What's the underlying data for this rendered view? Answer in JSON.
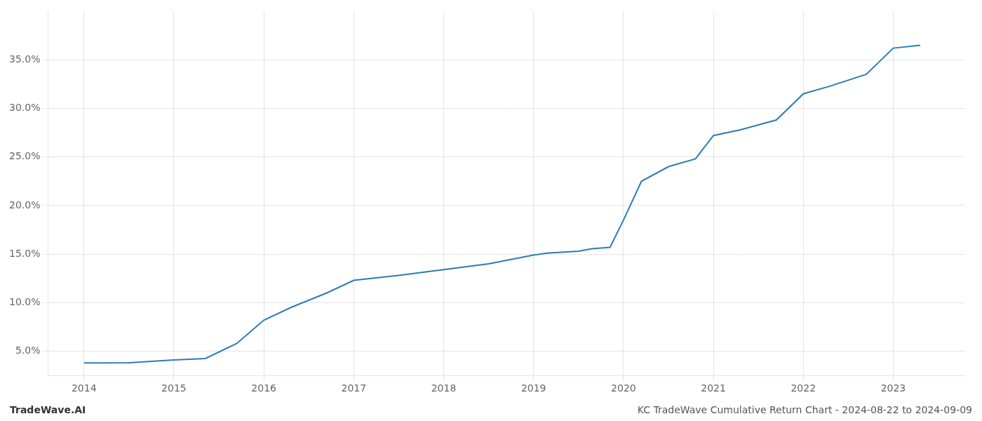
{
  "chart_data": {
    "type": "line",
    "x": [
      2014.0,
      2014.5,
      2015.0,
      2015.35,
      2015.7,
      2016.0,
      2016.3,
      2016.7,
      2017.0,
      2017.5,
      2018.0,
      2018.5,
      2019.0,
      2019.15,
      2019.5,
      2019.65,
      2019.85,
      2020.0,
      2020.2,
      2020.5,
      2020.8,
      2021.0,
      2021.3,
      2021.7,
      2022.0,
      2022.3,
      2022.7,
      2023.0,
      2023.3
    ],
    "values": [
      3.8,
      3.82,
      4.1,
      4.25,
      5.8,
      8.2,
      9.5,
      11.0,
      12.3,
      12.8,
      13.4,
      14.0,
      14.9,
      15.1,
      15.3,
      15.55,
      15.7,
      18.5,
      22.5,
      24.0,
      24.8,
      27.2,
      27.8,
      28.8,
      31.5,
      32.3,
      33.5,
      36.2,
      36.5
    ],
    "color": "#2d7bb5",
    "xlim": [
      2013.6,
      2023.8
    ],
    "xticks": [
      2014,
      2015,
      2016,
      2017,
      2018,
      2019,
      2020,
      2021,
      2022,
      2023
    ],
    "ylim": [
      2.5,
      40.0
    ],
    "yticks": [
      {
        "value": 5.0,
        "label": "5.0%"
      },
      {
        "value": 10.0,
        "label": "10.0%"
      },
      {
        "value": 15.0,
        "label": "15.0%"
      },
      {
        "value": 20.0,
        "label": "20.0%"
      },
      {
        "value": 25.0,
        "label": "25.0%"
      },
      {
        "value": 30.0,
        "label": "30.0%"
      },
      {
        "value": 35.0,
        "label": "35.0%"
      }
    ],
    "grid": true,
    "annotations": [
      "TradeWave.AI",
      "KC TradeWave Cumulative Return Chart - 2024-08-22 to 2024-09-09"
    ]
  }
}
